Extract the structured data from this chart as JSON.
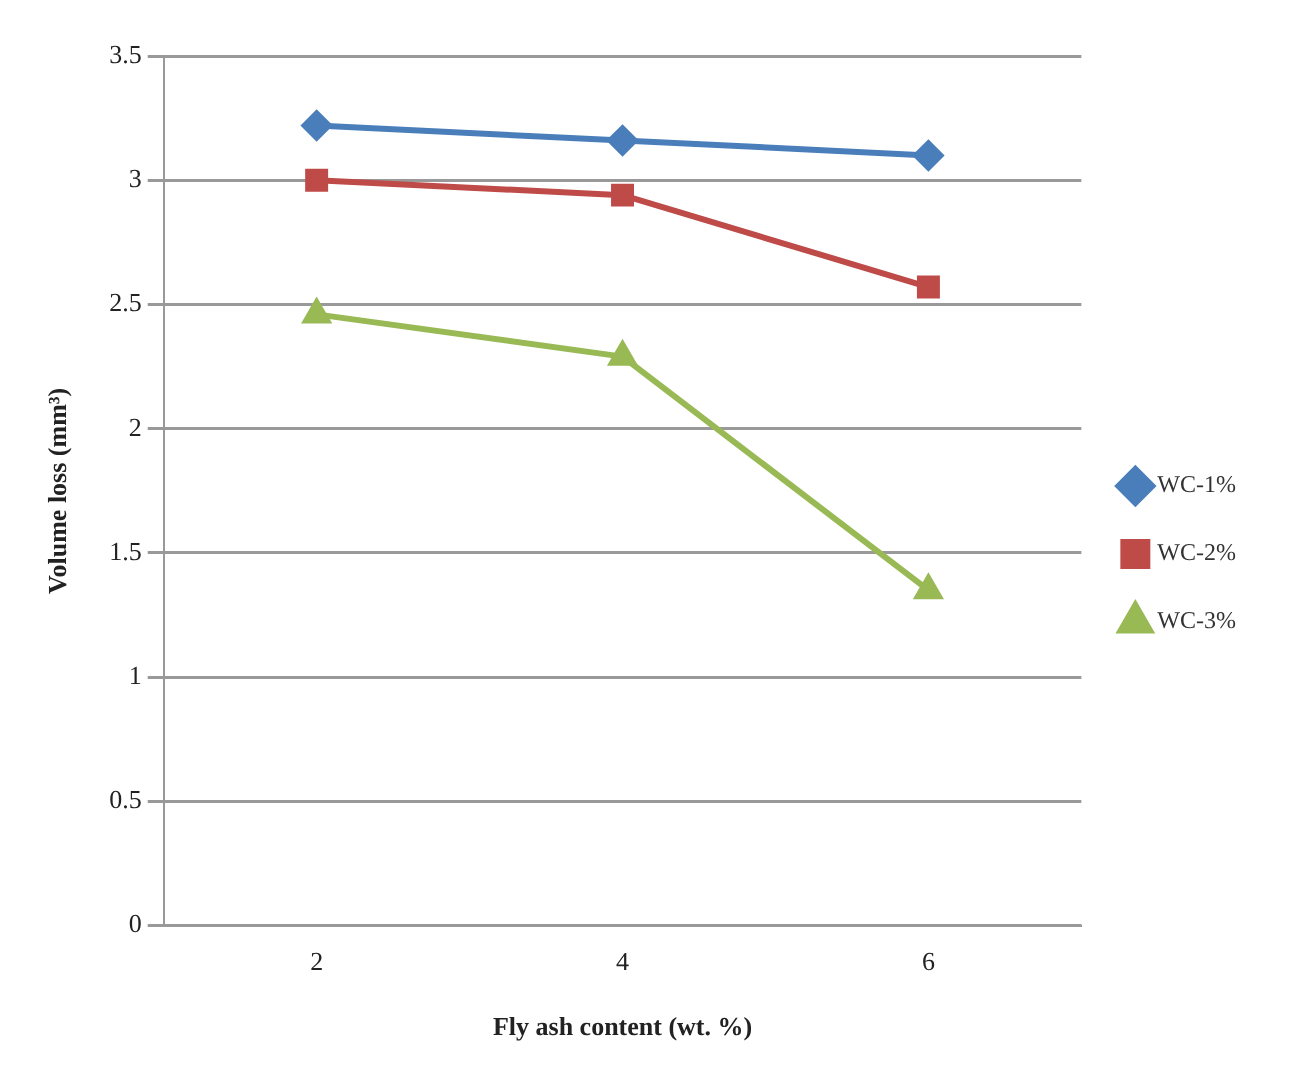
{
  "chart_data": {
    "type": "line",
    "xlabel": "Fly ash content (wt. %)",
    "ylabel": "Volume loss (mm³)",
    "categories": [
      "2",
      "4",
      "6"
    ],
    "series": [
      {
        "name": "WC-1%",
        "color": "#4a7ebb",
        "marker": "diamond",
        "values": [
          3.22,
          3.16,
          3.1
        ]
      },
      {
        "name": "WC-2%",
        "color": "#be4b48",
        "marker": "square",
        "values": [
          3.0,
          2.94,
          2.57
        ]
      },
      {
        "name": "WC-3%",
        "color": "#98b954",
        "marker": "triangle",
        "values": [
          2.46,
          2.29,
          1.35
        ]
      }
    ],
    "ylim": [
      0,
      3.5
    ],
    "yticks": [
      0,
      0.5,
      1,
      1.5,
      2,
      2.5,
      3,
      3.5
    ],
    "grid": "y",
    "legend": "right"
  }
}
